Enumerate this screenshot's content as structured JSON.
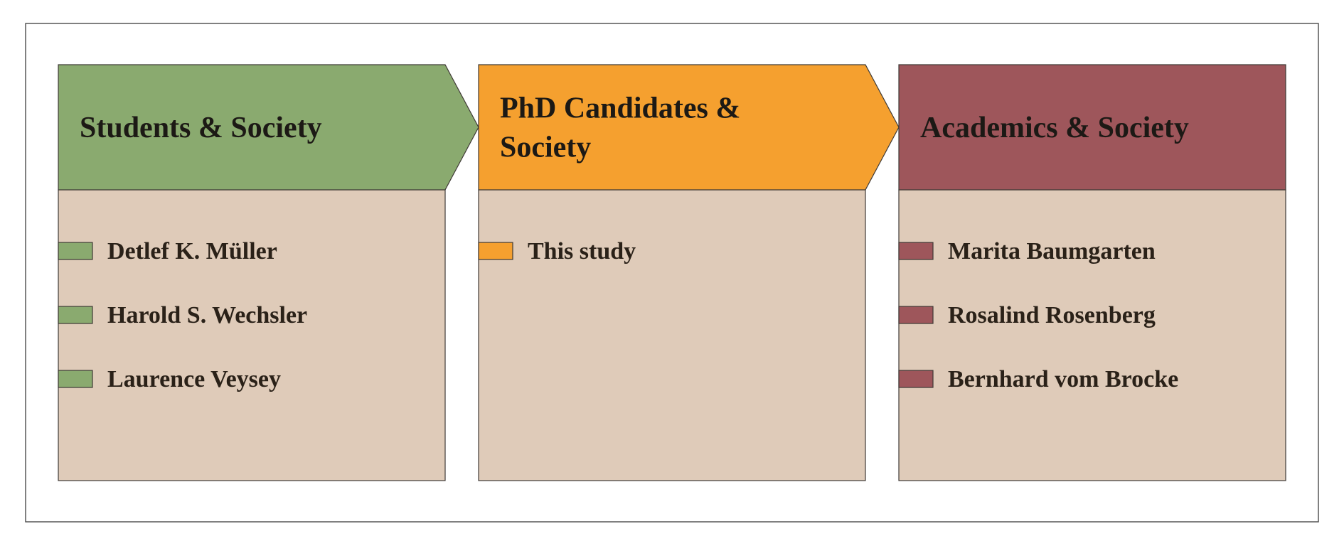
{
  "colors": {
    "body": "#dfcbb9",
    "green": "#8aaa6f",
    "orange": "#f5a02f",
    "maroon": "#9e565b"
  },
  "columns": [
    {
      "title_lines": [
        "Students & Society"
      ],
      "color": "#8aaa6f",
      "arrow": true,
      "items": [
        "Detlef K. Müller",
        "Harold S. Wechsler",
        "Laurence Veysey"
      ]
    },
    {
      "title_lines": [
        "PhD Candidates &",
        "Society"
      ],
      "color": "#f5a02f",
      "arrow": true,
      "items": [
        "This study"
      ]
    },
    {
      "title_lines": [
        "Academics & Society"
      ],
      "color": "#9e565b",
      "arrow": false,
      "items": [
        "Marita Baumgarten",
        "Rosalind Rosenberg",
        "Bernhard vom Brocke"
      ]
    }
  ]
}
